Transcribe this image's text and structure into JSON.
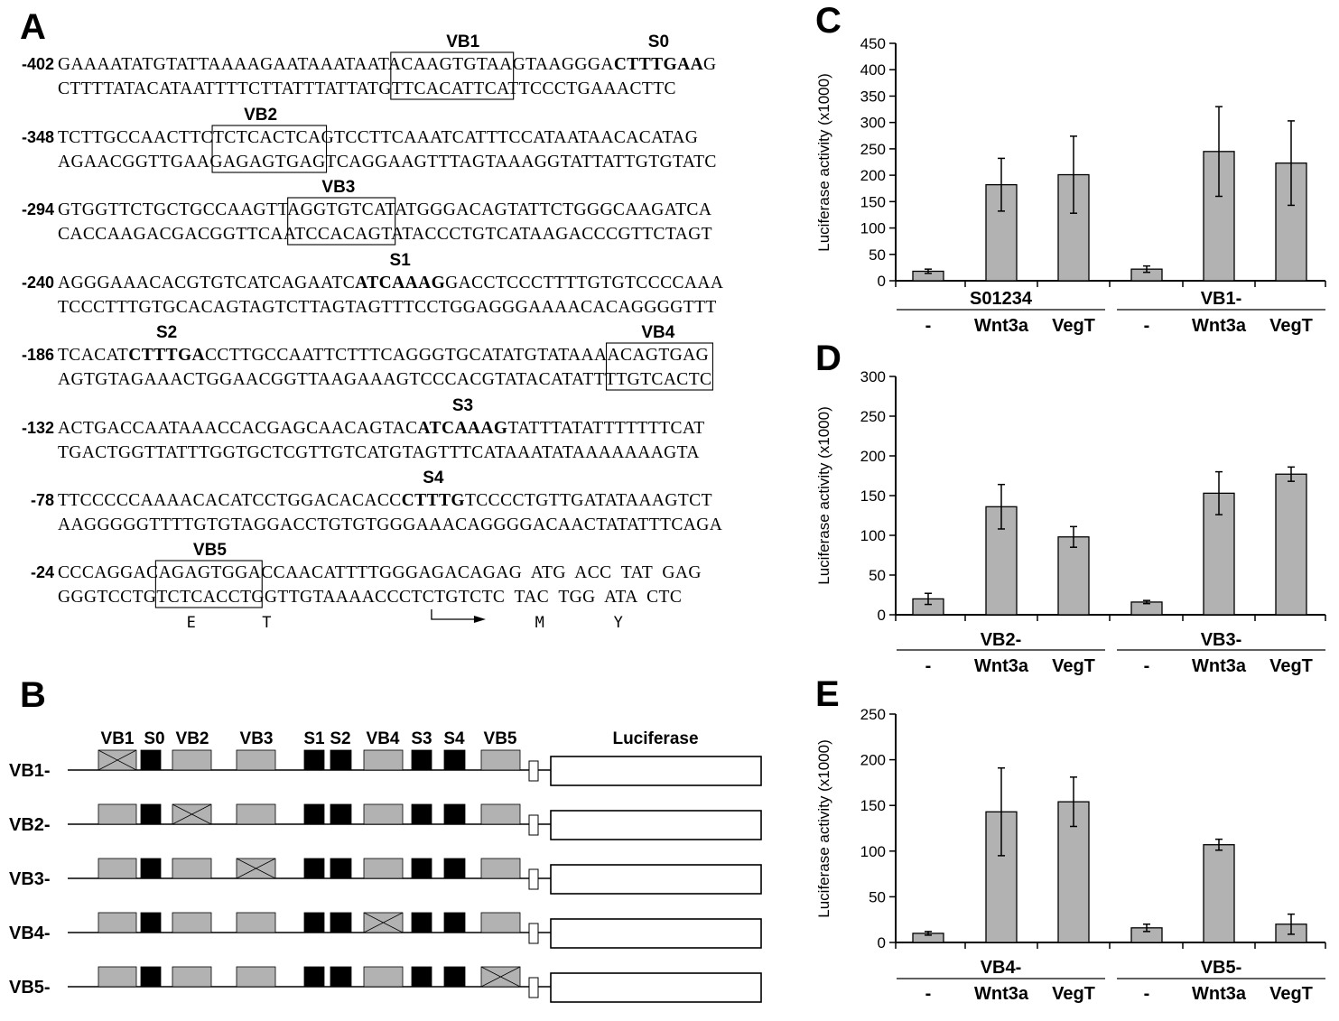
{
  "panel_a": {
    "letter": "A",
    "rows": [
      {
        "pos": "-402",
        "top": "GAAAATATGTATTAAAAGAATAAATAATAC|AAGTGTAA|GTAAGGGA*CTTTGAA*G",
        "bottom": "CTTTTATACATAATTTTCTTATTTATTATG|TTCACATT|CATTCCCTGAAACTTC",
        "labels": [
          {
            "text": "VB1",
            "at": "box"
          },
          {
            "text": "S0",
            "at": "bold"
          }
        ]
      },
      {
        "pos": "-348",
        "top": "TCTTGCCAACTTC|TCTCACTC|AGTCCTTCAAATCATTTCCATAATAACACATAG",
        "bottom": "AGAACGGTTGAAG|AGAGTGAG|TCAGGAAGTTTAGTAAAGGTATTATTGTGTATC",
        "labels": [
          {
            "text": "VB2",
            "at": "box"
          }
        ]
      },
      {
        "pos": "-294",
        "top": "GTGGTTCTGCTGCCAAGTT|AGGTGTCA|TATGGGACAGTATTCTGGGCAAGATCA",
        "bottom": "CACCAAGACGACGGTTCAA|TCCACAGT|ATACCCTGTCATAAGACCCGTTCTAGT",
        "labels": [
          {
            "text": "VB3",
            "at": "box"
          }
        ]
      },
      {
        "pos": "-240",
        "top": "AGGGAAACACGTGTCATCAGAATC*ATCAAAG*GACCTCCCTTTTGTGTCCCCAAA",
        "bottom": "TCCCTTTGTGCACAGTAGTCTTAGTAGTTTCCTGGAGGGAAAACACAGGGGTTT",
        "labels": [
          {
            "text": "S1",
            "at": "bold"
          }
        ]
      },
      {
        "pos": "-186",
        "top": "TCACAT*CTTTGA*CCTTGCCAATTCTTTCAGGGTGCATATGTATAAA|ACAGTGAG|",
        "bottom": "AGTGTAGAAACTGGAACGGTTAAGAAAGTCCCACGTATACATATTT|TGTCACTC|",
        "labels": [
          {
            "text": "S2",
            "at": "bold"
          },
          {
            "text": "VB4",
            "at": "box"
          }
        ]
      },
      {
        "pos": "-132",
        "top": "ACTGACCAATAAACCACGAGCAACAGTAC*ATCAAAG*TATTTATATTTTTTTCAT",
        "bottom": "TGACTGGTTATTTGGTGCTCGTTGTCATGTAGTTTCATAAATATAAAAAAAGTA",
        "labels": [
          {
            "text": "S3",
            "at": "bold"
          }
        ]
      },
      {
        "pos": "-78",
        "top": "TTCCCCCAAAACACATCCTGGACACACC*CTTTG*TCCCCTGTTGATATAAAGTCT",
        "bottom": "AAGGGGGTTTTGTGTAGGACCTGTGTGGGAAACAGGGGACAACTATATTTCAGA",
        "labels": [
          {
            "text": "S4",
            "at": "bold"
          }
        ]
      },
      {
        "pos": "-24",
        "top": "CCCAGGAC|AGAGTGGA|CCAACATTTTGGGAGACAGAG  ATG  ACC  TAT  GAG",
        "bottom": "GGGTCCTG|TCTCACCT|GGTTGTAAAACCCTCTGTCTC  TAC  TGG  ATA  CTC",
        "labels": [
          {
            "text": "VB5",
            "at": "box"
          }
        ]
      }
    ],
    "amino_acids": [
      "M",
      "T",
      "Y",
      "E"
    ]
  },
  "panel_b": {
    "letter": "B",
    "element_labels": [
      "VB1",
      "S0",
      "VB2",
      "VB3",
      "S1",
      "S2",
      "VB4",
      "S3",
      "S4",
      "VB5"
    ],
    "reporter_label": "Luciferase",
    "constructs": [
      {
        "name": "VB1-",
        "mutated": "VB1"
      },
      {
        "name": "VB2-",
        "mutated": "VB2"
      },
      {
        "name": "VB3-",
        "mutated": "VB3"
      },
      {
        "name": "VB4-",
        "mutated": "VB4"
      },
      {
        "name": "VB5-",
        "mutated": "VB5"
      }
    ]
  },
  "chart_data": [
    {
      "panel": "C",
      "type": "bar",
      "ylabel": "Luciferase activity (x1000)",
      "ylim": [
        0,
        450
      ],
      "yticks": [
        0,
        50,
        100,
        150,
        200,
        250,
        300,
        350,
        400,
        450
      ],
      "categories": [
        "-",
        "Wnt3a",
        "VegT",
        "-",
        "Wnt3a",
        "VegT"
      ],
      "groups": [
        {
          "name": "S01234",
          "indices": [
            0,
            1,
            2
          ]
        },
        {
          "name": "VB1-",
          "indices": [
            3,
            4,
            5
          ]
        }
      ],
      "values": [
        18,
        182,
        201,
        22,
        245,
        223
      ],
      "errors": [
        4,
        50,
        73,
        6,
        85,
        80
      ]
    },
    {
      "panel": "D",
      "type": "bar",
      "ylabel": "Luciferase activity (x1000)",
      "ylim": [
        0,
        300
      ],
      "yticks": [
        0,
        50,
        100,
        150,
        200,
        250,
        300
      ],
      "categories": [
        "-",
        "Wnt3a",
        "VegT",
        "-",
        "Wnt3a",
        "VegT"
      ],
      "groups": [
        {
          "name": "VB2-",
          "indices": [
            0,
            1,
            2
          ]
        },
        {
          "name": "VB3-",
          "indices": [
            3,
            4,
            5
          ]
        }
      ],
      "values": [
        20,
        136,
        98,
        16,
        153,
        177
      ],
      "errors": [
        7,
        28,
        13,
        2,
        27,
        9
      ]
    },
    {
      "panel": "E",
      "type": "bar",
      "ylabel": "Luciferase activity (x1000)",
      "ylim": [
        0,
        250
      ],
      "yticks": [
        0,
        50,
        100,
        150,
        200,
        250
      ],
      "categories": [
        "-",
        "Wnt3a",
        "VegT",
        "-",
        "Wnt3a",
        "VegT"
      ],
      "groups": [
        {
          "name": "VB4-",
          "indices": [
            0,
            1,
            2
          ]
        },
        {
          "name": "VB5-",
          "indices": [
            3,
            4,
            5
          ]
        }
      ],
      "values": [
        10,
        143,
        154,
        16,
        107,
        20
      ],
      "errors": [
        2,
        48,
        27,
        4,
        6,
        11
      ]
    }
  ],
  "colors": {
    "bar_fill": "#b2b2b2",
    "mark": "#000000",
    "background": "#ffffff"
  }
}
